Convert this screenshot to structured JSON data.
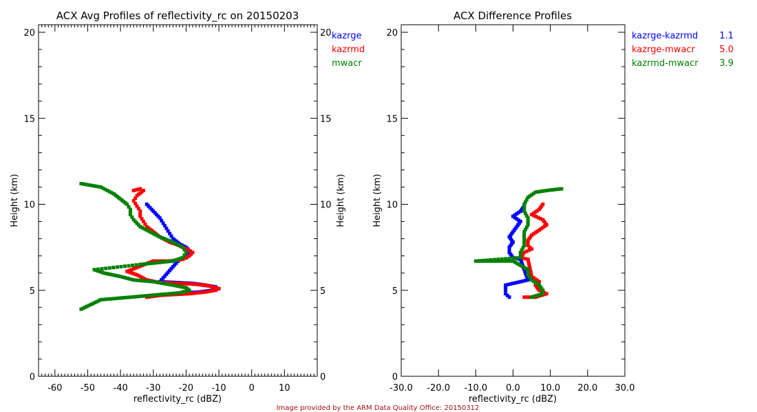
{
  "footer": {
    "credit": "Image provided by the ARM Data Quality Office: 20150312"
  },
  "colors": {
    "kazrge": "#0000ff",
    "kazrmd": "#ff0000",
    "mwacr": "#008000",
    "axis": "#000000",
    "credit": "#a01010"
  },
  "chart_data": [
    {
      "type": "scatter",
      "title": "ACX Avg Profiles of reflectivity_rc on 20150203",
      "xlabel": "reflectivity_rc (dBZ)",
      "ylabel": "Height (km)",
      "ylabel_right": "Height (km)",
      "xlim": [
        -65,
        20
      ],
      "ylim": [
        0,
        20
      ],
      "xticks": [
        -60,
        -50,
        -40,
        -30,
        -20,
        -10,
        0,
        10
      ],
      "xtick_labels": [
        "-60",
        "-50",
        "-40",
        "-30",
        "-20",
        "-10",
        "0",
        "10"
      ],
      "yticks": [
        0,
        5,
        10,
        15,
        20
      ],
      "ytick_labels": [
        "0",
        "5",
        "10",
        "15",
        "20"
      ],
      "legend": [
        "kazrge",
        "kazrmd",
        "mwacr"
      ],
      "legend_position": "top-right outside",
      "series": [
        {
          "name": "kazrge",
          "color": "#0000ff",
          "points": [
            [
              -32,
              10.0
            ],
            [
              -31,
              9.8
            ],
            [
              -30,
              9.6
            ],
            [
              -29,
              9.4
            ],
            [
              -28,
              9.2
            ],
            [
              -27,
              8.9
            ],
            [
              -26,
              8.6
            ],
            [
              -25,
              8.3
            ],
            [
              -24,
              8.0
            ],
            [
              -22,
              7.7
            ],
            [
              -20,
              7.5
            ],
            [
              -19,
              7.3
            ],
            [
              -19,
              7.1
            ],
            [
              -20,
              6.9
            ],
            [
              -22,
              6.8
            ],
            [
              -28,
              5.5
            ],
            [
              -23,
              5.45
            ],
            [
              -18,
              5.4
            ],
            [
              -14,
              5.3
            ],
            [
              -11,
              5.2
            ],
            [
              -10,
              5.1
            ],
            [
              -12,
              5.0
            ],
            [
              -16,
              4.9
            ],
            [
              -20,
              4.85
            ],
            [
              -24,
              4.8
            ],
            [
              -28,
              4.75
            ]
          ]
        },
        {
          "name": "kazrmd",
          "color": "#ff0000",
          "points": [
            [
              -36,
              10.8
            ],
            [
              -34,
              10.9
            ],
            [
              -33,
              10.8
            ],
            [
              -35,
              10.5
            ],
            [
              -36,
              10.2
            ],
            [
              -35,
              9.9
            ],
            [
              -34,
              9.6
            ],
            [
              -34,
              9.3
            ],
            [
              -33,
              9.0
            ],
            [
              -32,
              8.7
            ],
            [
              -30,
              8.4
            ],
            [
              -28,
              8.1
            ],
            [
              -25,
              7.8
            ],
            [
              -22,
              7.6
            ],
            [
              -20,
              7.4
            ],
            [
              -18,
              7.2
            ],
            [
              -19,
              7.0
            ],
            [
              -21,
              6.8
            ],
            [
              -25,
              6.7
            ],
            [
              -30,
              6.7
            ],
            [
              -38,
              6.1
            ],
            [
              -35,
              5.9
            ],
            [
              -32,
              5.6
            ],
            [
              -28,
              5.45
            ],
            [
              -22,
              5.4
            ],
            [
              -17,
              5.35
            ],
            [
              -13,
              5.25
            ],
            [
              -10,
              5.1
            ],
            [
              -11,
              5.0
            ],
            [
              -14,
              4.9
            ],
            [
              -19,
              4.8
            ],
            [
              -24,
              4.75
            ],
            [
              -28,
              4.7
            ],
            [
              -32,
              4.6
            ]
          ]
        },
        {
          "name": "mwacr",
          "color": "#008000",
          "points": [
            [
              -52,
              11.2
            ],
            [
              -46,
              11.0
            ],
            [
              -44,
              10.8
            ],
            [
              -42,
              10.6
            ],
            [
              -40,
              10.3
            ],
            [
              -38,
              10.0
            ],
            [
              -37,
              9.7
            ],
            [
              -37,
              9.4
            ],
            [
              -36,
              9.1
            ],
            [
              -34,
              8.7
            ],
            [
              -31,
              8.4
            ],
            [
              -28,
              8.1
            ],
            [
              -24,
              7.8
            ],
            [
              -21,
              7.5
            ],
            [
              -20,
              7.2
            ],
            [
              -21,
              6.9
            ],
            [
              -24,
              6.7
            ],
            [
              -29,
              6.6
            ],
            [
              -34,
              6.5
            ],
            [
              -48,
              6.2
            ],
            [
              -45,
              6.0
            ],
            [
              -40,
              5.8
            ],
            [
              -36,
              5.6
            ],
            [
              -30,
              5.5
            ],
            [
              -24,
              5.3
            ],
            [
              -20,
              5.15
            ],
            [
              -19,
              5.0
            ],
            [
              -22,
              4.85
            ],
            [
              -28,
              4.75
            ],
            [
              -34,
              4.65
            ],
            [
              -40,
              4.55
            ],
            [
              -46,
              4.45
            ],
            [
              -52,
              3.9
            ]
          ]
        }
      ]
    },
    {
      "type": "scatter",
      "title": "ACX Difference Profiles",
      "xlabel": "reflectivity_rc (dBZ)",
      "ylabel": "Height (km)",
      "xlim": [
        -30,
        30
      ],
      "ylim": [
        0,
        20
      ],
      "xticks": [
        -30,
        -20,
        -10,
        0,
        10,
        20,
        30
      ],
      "xtick_labels": [
        "-30.0",
        "-20.0",
        "-10.0",
        "0.0",
        "10.0",
        "20.0",
        "30.0"
      ],
      "yticks": [
        0,
        5,
        10,
        15,
        20
      ],
      "ytick_labels": [
        "0",
        "5",
        "10",
        "15",
        "20"
      ],
      "legend": [
        {
          "label": "kazrge-kazrmd",
          "value": "1.1"
        },
        {
          "label": "kazrge-mwacr",
          "value": "5.0"
        },
        {
          "label": "kazrmd-mwacr",
          "value": "3.9"
        }
      ],
      "legend_position": "top-right outside",
      "series": [
        {
          "name": "kazrge-kazrmd",
          "color": "#0000ff",
          "points": [
            [
              3,
              9.9
            ],
            [
              2,
              9.6
            ],
            [
              0,
              9.3
            ],
            [
              2,
              9.0
            ],
            [
              1,
              8.7
            ],
            [
              0,
              8.4
            ],
            [
              -1,
              8.1
            ],
            [
              0,
              7.8
            ],
            [
              -1,
              7.5
            ],
            [
              -1,
              7.2
            ],
            [
              0,
              6.9
            ],
            [
              2,
              6.8
            ],
            [
              4,
              5.6
            ],
            [
              2,
              5.5
            ],
            [
              0,
              5.4
            ],
            [
              -2,
              5.3
            ],
            [
              -2,
              5.0
            ],
            [
              -2,
              4.8
            ],
            [
              -1,
              4.6
            ]
          ]
        },
        {
          "name": "kazrge-mwacr",
          "color": "#ff0000",
          "points": [
            [
              8,
              10.0
            ],
            [
              7,
              9.7
            ],
            [
              5,
              9.4
            ],
            [
              8,
              9.1
            ],
            [
              9,
              8.8
            ],
            [
              7,
              8.5
            ],
            [
              5,
              8.2
            ],
            [
              4,
              7.9
            ],
            [
              4,
              7.6
            ],
            [
              5,
              7.4
            ],
            [
              3,
              7.2
            ],
            [
              2,
              6.9
            ],
            [
              4,
              6.8
            ],
            [
              5,
              5.8
            ],
            [
              7,
              5.5
            ],
            [
              6,
              5.3
            ],
            [
              7,
              5.0
            ],
            [
              9,
              4.8
            ],
            [
              6,
              4.6
            ],
            [
              3,
              4.6
            ]
          ]
        },
        {
          "name": "kazrmd-mwacr",
          "color": "#008000",
          "points": [
            [
              13,
              10.9
            ],
            [
              9,
              10.8
            ],
            [
              6,
              10.7
            ],
            [
              4,
              10.4
            ],
            [
              3,
              10.0
            ],
            [
              3,
              9.6
            ],
            [
              4,
              9.2
            ],
            [
              4,
              8.8
            ],
            [
              3,
              8.4
            ],
            [
              3,
              8.0
            ],
            [
              3,
              7.6
            ],
            [
              2,
              7.2
            ],
            [
              2,
              6.9
            ],
            [
              -10,
              6.7
            ],
            [
              -6,
              6.7
            ],
            [
              0,
              6.7
            ],
            [
              4,
              6.2
            ],
            [
              4,
              5.9
            ],
            [
              5,
              5.6
            ],
            [
              7,
              5.3
            ],
            [
              8,
              5.0
            ],
            [
              8,
              4.8
            ],
            [
              5,
              4.6
            ]
          ]
        }
      ]
    }
  ]
}
